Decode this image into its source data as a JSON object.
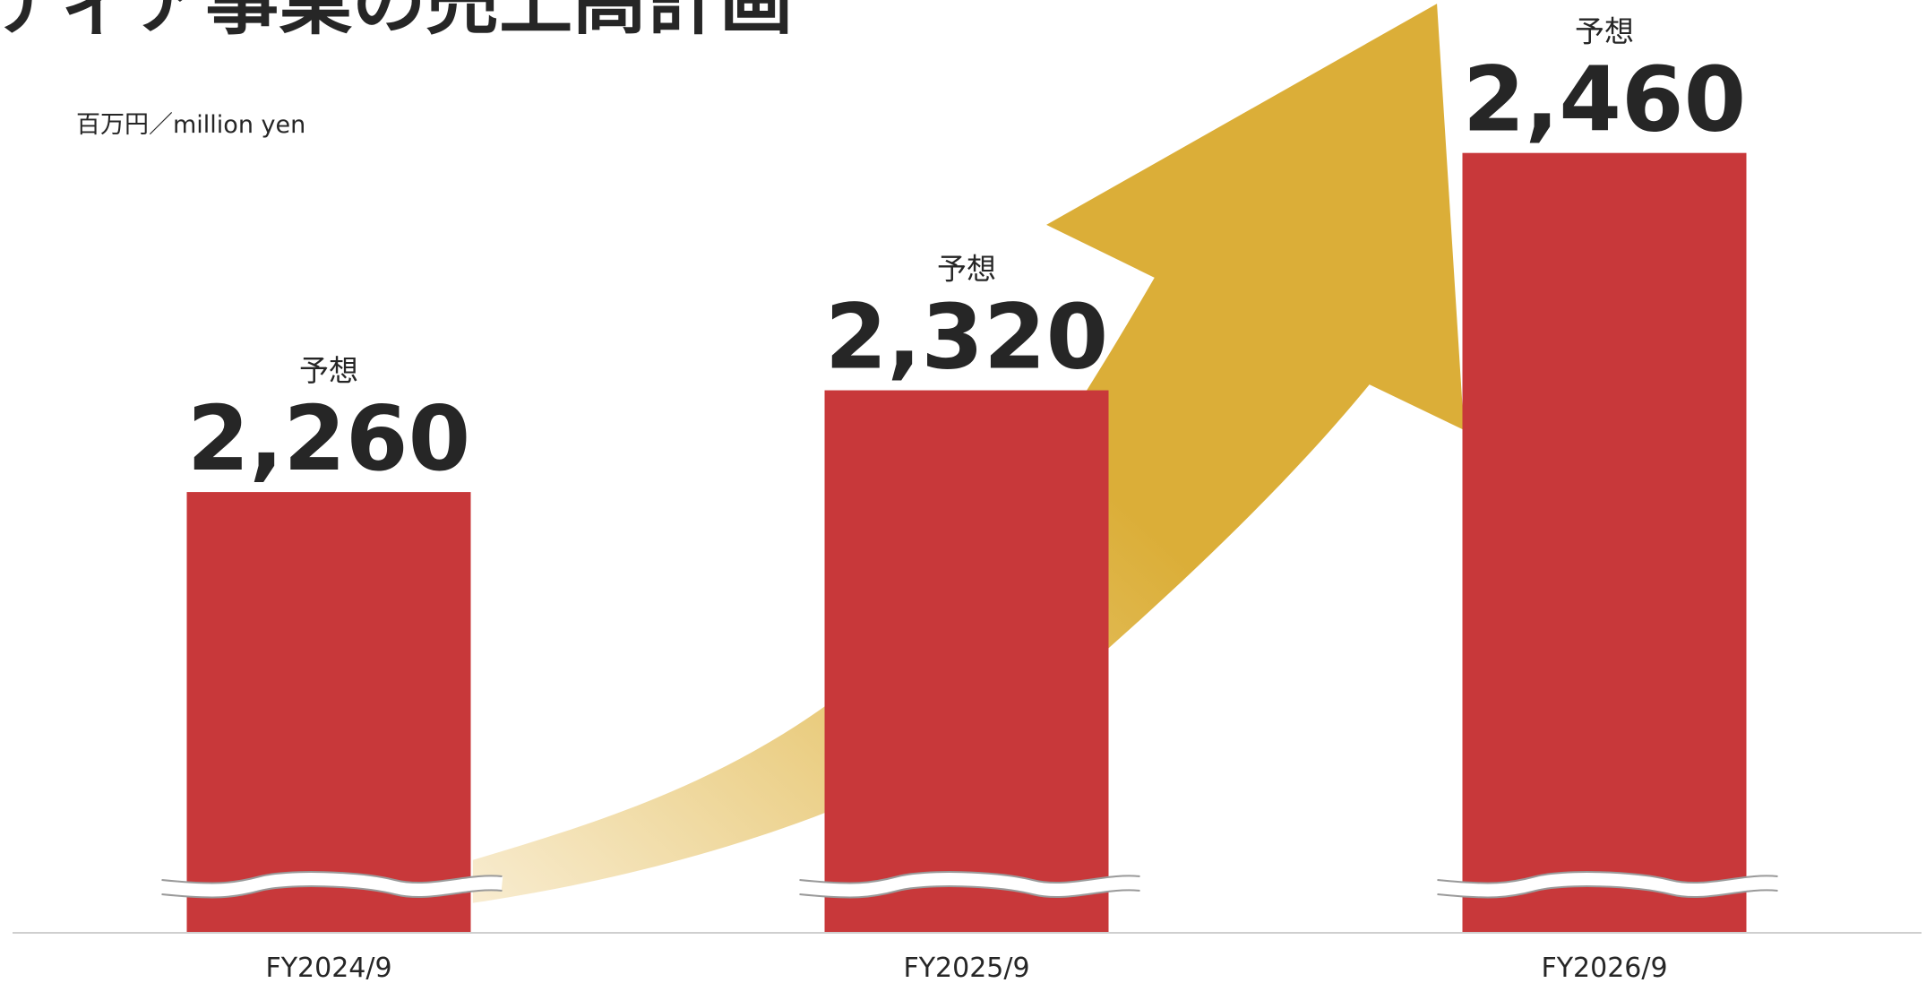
{
  "chart_data": {
    "type": "bar",
    "title": "メディア事業の売上高計画",
    "unit": "百万円／million yen",
    "categories": [
      "FY2024/9",
      "FY2025/9",
      "FY2026/9"
    ],
    "values": [
      2260,
      2320,
      2460
    ],
    "value_labels": [
      "2,260",
      "2,320",
      "2,460"
    ],
    "annotations": [
      "予想",
      "予想",
      "予想"
    ],
    "color": "#c8383a",
    "ylim": [
      2000,
      2500
    ],
    "axis_break": true
  }
}
